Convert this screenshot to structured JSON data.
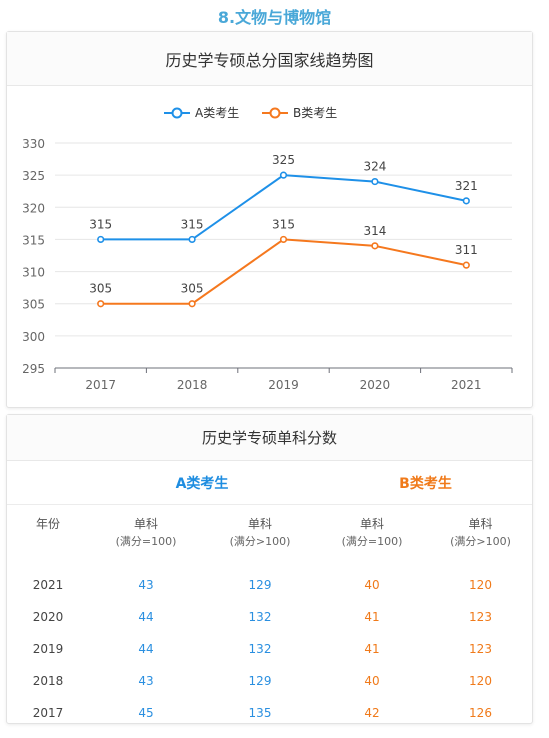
{
  "section_title": "8.文物与博物馆",
  "chart_data": {
    "type": "line",
    "title": "历史学专硕总分国家线趋势图",
    "categories": [
      "2017",
      "2018",
      "2019",
      "2020",
      "2021"
    ],
    "series": [
      {
        "name": "A类考生",
        "values": [
          315,
          315,
          325,
          324,
          321
        ],
        "color": "#1e90e8"
      },
      {
        "name": "B类考生",
        "values": [
          305,
          305,
          315,
          314,
          311
        ],
        "color": "#f5781e"
      }
    ],
    "ylim": [
      295,
      330
    ],
    "yticks": [
      295,
      300,
      305,
      310,
      315,
      320,
      325,
      330
    ],
    "grid": true,
    "legend": "top-center",
    "xlabel": "",
    "ylabel": ""
  },
  "table": {
    "title": "历史学专硕单科分数",
    "group_a": "A类考生",
    "group_b": "B类考生",
    "headers": [
      {
        "main": "年份",
        "sub": ""
      },
      {
        "main": "单科",
        "sub": "(满分=100)"
      },
      {
        "main": "单科",
        "sub": "(满分>100)"
      },
      {
        "main": "单科",
        "sub": "(满分=100)"
      },
      {
        "main": "单科",
        "sub": "(满分>100)"
      }
    ],
    "rows": [
      {
        "year": "2021",
        "a1": "43",
        "a2": "129",
        "b1": "40",
        "b2": "120"
      },
      {
        "year": "2020",
        "a1": "44",
        "a2": "132",
        "b1": "41",
        "b2": "123"
      },
      {
        "year": "2019",
        "a1": "44",
        "a2": "132",
        "b1": "41",
        "b2": "123"
      },
      {
        "year": "2018",
        "a1": "43",
        "a2": "129",
        "b1": "40",
        "b2": "120"
      },
      {
        "year": "2017",
        "a1": "45",
        "a2": "135",
        "b1": "42",
        "b2": "126"
      }
    ]
  }
}
